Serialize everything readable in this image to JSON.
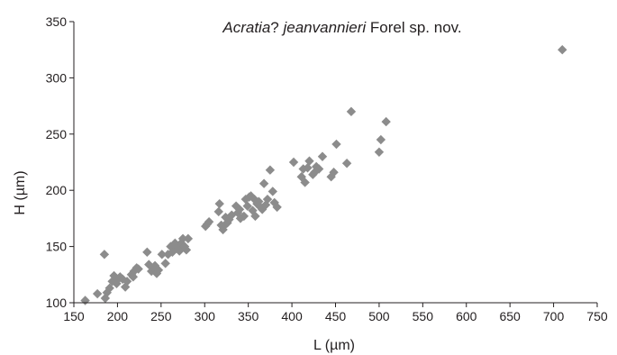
{
  "chart_data": {
    "type": "scatter",
    "title_parts": [
      {
        "text": "Acratia",
        "italic": true
      },
      {
        "text": "? ",
        "italic": false
      },
      {
        "text": "jeanvannieri",
        "italic": true
      },
      {
        "text": " Forel sp. nov.",
        "italic": false
      }
    ],
    "xlabel": "L (µm)",
    "ylabel": "H (µm)",
    "xlim": [
      150,
      750
    ],
    "ylim": [
      100,
      350
    ],
    "xticks": [
      150,
      200,
      250,
      300,
      350,
      400,
      450,
      500,
      550,
      600,
      650,
      700,
      750
    ],
    "yticks": [
      100,
      150,
      200,
      250,
      300,
      350
    ],
    "grid": false,
    "marker": "diamond",
    "marker_color": "#8c8c8c",
    "axis_color": "#231f20",
    "points": [
      [
        163,
        102
      ],
      [
        177,
        108
      ],
      [
        185,
        143
      ],
      [
        186,
        104
      ],
      [
        188,
        109
      ],
      [
        191,
        113
      ],
      [
        194,
        119
      ],
      [
        196,
        124
      ],
      [
        199,
        117
      ],
      [
        201,
        121
      ],
      [
        203,
        123
      ],
      [
        206,
        121
      ],
      [
        209,
        114
      ],
      [
        211,
        119
      ],
      [
        216,
        125
      ],
      [
        218,
        123
      ],
      [
        219,
        128
      ],
      [
        222,
        131
      ],
      [
        224,
        130
      ],
      [
        234,
        145
      ],
      [
        236,
        134
      ],
      [
        239,
        128
      ],
      [
        241,
        131
      ],
      [
        243,
        133
      ],
      [
        245,
        126
      ],
      [
        247,
        129
      ],
      [
        251,
        143
      ],
      [
        255,
        135
      ],
      [
        258,
        143
      ],
      [
        261,
        150
      ],
      [
        263,
        145
      ],
      [
        266,
        153
      ],
      [
        268,
        149
      ],
      [
        270,
        148
      ],
      [
        271,
        146
      ],
      [
        273,
        153
      ],
      [
        275,
        157
      ],
      [
        277,
        150
      ],
      [
        279,
        147
      ],
      [
        281,
        157
      ],
      [
        301,
        168
      ],
      [
        303,
        170
      ],
      [
        305,
        172
      ],
      [
        316,
        181
      ],
      [
        317,
        188
      ],
      [
        319,
        169
      ],
      [
        321,
        165
      ],
      [
        323,
        169
      ],
      [
        324,
        176
      ],
      [
        326,
        171
      ],
      [
        328,
        174
      ],
      [
        331,
        178
      ],
      [
        336,
        186
      ],
      [
        338,
        180
      ],
      [
        340,
        183
      ],
      [
        341,
        175
      ],
      [
        345,
        177
      ],
      [
        347,
        192
      ],
      [
        349,
        186
      ],
      [
        351,
        194
      ],
      [
        353,
        195
      ],
      [
        355,
        182
      ],
      [
        357,
        192
      ],
      [
        358,
        177
      ],
      [
        360,
        188
      ],
      [
        362,
        190
      ],
      [
        364,
        185
      ],
      [
        366,
        183
      ],
      [
        368,
        206
      ],
      [
        370,
        187
      ],
      [
        372,
        192
      ],
      [
        375,
        218
      ],
      [
        378,
        199
      ],
      [
        380,
        189
      ],
      [
        383,
        185
      ],
      [
        402,
        225
      ],
      [
        411,
        212
      ],
      [
        413,
        219
      ],
      [
        415,
        207
      ],
      [
        418,
        220
      ],
      [
        420,
        226
      ],
      [
        424,
        214
      ],
      [
        426,
        216
      ],
      [
        428,
        221
      ],
      [
        431,
        219
      ],
      [
        435,
        230
      ],
      [
        445,
        212
      ],
      [
        448,
        216
      ],
      [
        451,
        241
      ],
      [
        463,
        224
      ],
      [
        468,
        270
      ],
      [
        500,
        234
      ],
      [
        502,
        245
      ],
      [
        508,
        261
      ],
      [
        710,
        325
      ]
    ]
  }
}
